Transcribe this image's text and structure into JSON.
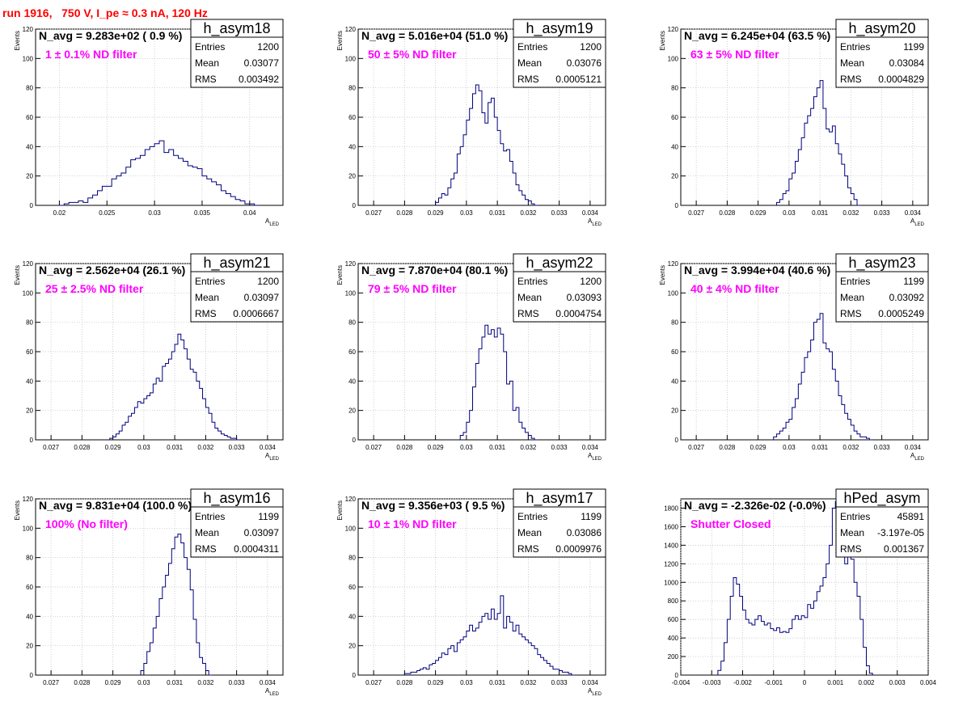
{
  "title": "run 1916,   750 V, I_pe ≈ 0.3 nA, 120 Hz",
  "colors": {
    "title": "#ff0000",
    "histogram": "#00007f",
    "filter_text": "#ff00ff",
    "grid": "#bbbbbb"
  },
  "stats_labels": [
    "Entries",
    "Mean",
    "RMS"
  ],
  "chart_data": [
    {
      "type": "histogram",
      "name": "h_asym18",
      "n_avg": "N_avg = 9.283e+02 ( 0.9 %)",
      "filter": "1 ± 0.1% ND filter",
      "entries": "1200",
      "mean": "0.03077",
      "rms": "0.003492",
      "xlabel": "A_LED",
      "ylabel": "Events",
      "xlim": [
        0.0175,
        0.0435
      ],
      "ylim": [
        0,
        120
      ],
      "xticks": [
        "0.02",
        "0.025",
        "0.03",
        "0.035",
        "0.04"
      ],
      "xtick_values": [
        0.02,
        0.025,
        0.03,
        0.035,
        0.04
      ],
      "yticks": [
        0,
        20,
        40,
        60,
        80,
        100,
        120
      ],
      "bins": [
        0.02,
        0.0205,
        0.021,
        0.0215,
        0.022,
        0.0225,
        0.023,
        0.0235,
        0.024,
        0.0245,
        0.025,
        0.0255,
        0.026,
        0.0265,
        0.027,
        0.0275,
        0.028,
        0.0285,
        0.029,
        0.0295,
        0.03,
        0.0305,
        0.031,
        0.0315,
        0.032,
        0.0325,
        0.033,
        0.0335,
        0.034,
        0.0345,
        0.035,
        0.0355,
        0.036,
        0.0365,
        0.037,
        0.0375,
        0.038,
        0.0385,
        0.039,
        0.0395,
        0.04,
        0.0405
      ],
      "counts": [
        0,
        1,
        2,
        2,
        3,
        2,
        5,
        7,
        10,
        13,
        13,
        18,
        20,
        22,
        26,
        31,
        32,
        34,
        38,
        40,
        42,
        44,
        36,
        38,
        34,
        32,
        30,
        27,
        26,
        25,
        20,
        18,
        16,
        14,
        10,
        8,
        6,
        4,
        3,
        1,
        1,
        0
      ]
    },
    {
      "type": "histogram",
      "name": "h_asym19",
      "n_avg": "N_avg = 5.016e+04 (51.0 %)",
      "filter": "50 ± 5% ND filter",
      "entries": "1200",
      "mean": "0.03076",
      "rms": "0.0005121",
      "xlabel": "A_LED",
      "ylabel": "Events",
      "xlim": [
        0.0265,
        0.0345
      ],
      "ylim": [
        0,
        120
      ],
      "xticks": [
        "0.027",
        "0.028",
        "0.029",
        "0.03",
        "0.031",
        "0.032",
        "0.033",
        "0.034"
      ],
      "xtick_values": [
        0.027,
        0.028,
        0.029,
        0.03,
        0.031,
        0.032,
        0.033,
        0.034
      ],
      "yticks": [
        0,
        20,
        40,
        60,
        80,
        100,
        120
      ],
      "bins": [
        0.029,
        0.0291,
        0.0292,
        0.0293,
        0.0294,
        0.0295,
        0.0296,
        0.0297,
        0.0298,
        0.0299,
        0.03,
        0.0301,
        0.0302,
        0.0303,
        0.0304,
        0.0305,
        0.0306,
        0.0307,
        0.0308,
        0.0309,
        0.031,
        0.0311,
        0.0312,
        0.0313,
        0.0314,
        0.0315,
        0.0316,
        0.0317,
        0.0318,
        0.0319,
        0.032,
        0.0321,
        0.0322
      ],
      "counts": [
        2,
        5,
        8,
        7,
        12,
        18,
        22,
        35,
        40,
        48,
        58,
        66,
        76,
        82,
        78,
        63,
        56,
        70,
        73,
        60,
        51,
        42,
        37,
        38,
        30,
        22,
        14,
        10,
        7,
        4,
        3,
        1,
        0
      ]
    },
    {
      "type": "histogram",
      "name": "h_asym20",
      "n_avg": "N_avg = 6.245e+04 (63.5 %)",
      "filter": "63 ± 5% ND filter",
      "entries": "1199",
      "mean": "0.03084",
      "rms": "0.0004829",
      "xlabel": "A_LED",
      "ylabel": "Events",
      "xlim": [
        0.0265,
        0.0345
      ],
      "ylim": [
        0,
        120
      ],
      "xticks": [
        "0.027",
        "0.028",
        "0.029",
        "0.03",
        "0.031",
        "0.032",
        "0.033",
        "0.034"
      ],
      "xtick_values": [
        0.027,
        0.028,
        0.029,
        0.03,
        0.031,
        0.032,
        0.033,
        0.034
      ],
      "yticks": [
        0,
        20,
        40,
        60,
        80,
        100,
        120
      ],
      "bins": [
        0.0296,
        0.0297,
        0.0298,
        0.0299,
        0.03,
        0.0301,
        0.0302,
        0.0303,
        0.0304,
        0.0305,
        0.0306,
        0.0307,
        0.0308,
        0.0309,
        0.031,
        0.0311,
        0.0312,
        0.0313,
        0.0314,
        0.0315,
        0.0316,
        0.0317,
        0.0318,
        0.0319,
        0.032,
        0.0321,
        0.0322
      ],
      "counts": [
        2,
        4,
        8,
        10,
        18,
        22,
        30,
        38,
        46,
        56,
        61,
        66,
        74,
        80,
        85,
        66,
        52,
        50,
        54,
        42,
        35,
        28,
        20,
        12,
        8,
        4,
        0
      ]
    },
    {
      "type": "histogram",
      "name": "h_asym21",
      "n_avg": "N_avg = 2.562e+04 (26.1 %)",
      "filter": "25 ± 2.5% ND filter",
      "entries": "1200",
      "mean": "0.03097",
      "rms": "0.0006667",
      "xlabel": "A_LED",
      "ylabel": "Events",
      "xlim": [
        0.0265,
        0.0345
      ],
      "ylim": [
        0,
        120
      ],
      "xticks": [
        "0.027",
        "0.028",
        "0.029",
        "0.03",
        "0.031",
        "0.032",
        "0.033",
        "0.034"
      ],
      "xtick_values": [
        0.027,
        0.028,
        0.029,
        0.03,
        0.031,
        0.032,
        0.033,
        0.034
      ],
      "yticks": [
        0,
        20,
        40,
        60,
        80,
        100,
        120
      ],
      "bins": [
        0.0289,
        0.029,
        0.0291,
        0.0292,
        0.0293,
        0.0294,
        0.0295,
        0.0296,
        0.0297,
        0.0298,
        0.0299,
        0.03,
        0.0301,
        0.0302,
        0.0303,
        0.0304,
        0.0305,
        0.0306,
        0.0307,
        0.0308,
        0.0309,
        0.031,
        0.0311,
        0.0312,
        0.0313,
        0.0314,
        0.0315,
        0.0316,
        0.0317,
        0.0318,
        0.0319,
        0.032,
        0.0321,
        0.0322,
        0.0323,
        0.0324,
        0.0325,
        0.0326,
        0.0327,
        0.0328,
        0.0329,
        0.033
      ],
      "counts": [
        1,
        2,
        4,
        6,
        10,
        12,
        16,
        18,
        22,
        26,
        25,
        28,
        30,
        32,
        38,
        42,
        40,
        50,
        52,
        55,
        60,
        65,
        72,
        68,
        62,
        55,
        48,
        46,
        40,
        35,
        28,
        22,
        18,
        12,
        8,
        6,
        4,
        3,
        2,
        1,
        1,
        0
      ]
    },
    {
      "type": "histogram",
      "name": "h_asym22",
      "n_avg": "N_avg = 7.870e+04 (80.1 %)",
      "filter": "79 ± 5% ND filter",
      "entries": "1200",
      "mean": "0.03093",
      "rms": "0.0004754",
      "xlabel": "A_LED",
      "ylabel": "Events",
      "xlim": [
        0.0265,
        0.0345
      ],
      "ylim": [
        0,
        120
      ],
      "xticks": [
        "0.027",
        "0.028",
        "0.029",
        "0.03",
        "0.031",
        "0.032",
        "0.033",
        "0.034"
      ],
      "xtick_values": [
        0.027,
        0.028,
        0.029,
        0.03,
        0.031,
        0.032,
        0.033,
        0.034
      ],
      "yticks": [
        0,
        20,
        40,
        60,
        80,
        100,
        120
      ],
      "bins": [
        0.0298,
        0.0299,
        0.03,
        0.0301,
        0.0302,
        0.0303,
        0.0304,
        0.0305,
        0.0306,
        0.0307,
        0.0308,
        0.0309,
        0.031,
        0.0311,
        0.0312,
        0.0313,
        0.0314,
        0.0315,
        0.0316,
        0.0317,
        0.0318,
        0.0319,
        0.032,
        0.0321,
        0.0322
      ],
      "counts": [
        3,
        5,
        12,
        20,
        36,
        52,
        62,
        70,
        78,
        72,
        75,
        70,
        76,
        72,
        60,
        38,
        40,
        20,
        22,
        12,
        8,
        5,
        3,
        1,
        0
      ]
    },
    {
      "type": "histogram",
      "name": "h_asym23",
      "n_avg": "N_avg = 3.994e+04 (40.6 %)",
      "filter": "40 ± 4% ND filter",
      "entries": "1199",
      "mean": "0.03092",
      "rms": "0.0005249",
      "xlabel": "A_LED",
      "ylabel": "Events",
      "xlim": [
        0.0265,
        0.0345
      ],
      "ylim": [
        0,
        120
      ],
      "xticks": [
        "0.027",
        "0.028",
        "0.029",
        "0.03",
        "0.031",
        "0.032",
        "0.033",
        "0.034"
      ],
      "xtick_values": [
        0.027,
        0.028,
        0.029,
        0.03,
        0.031,
        0.032,
        0.033,
        0.034
      ],
      "yticks": [
        0,
        20,
        40,
        60,
        80,
        100,
        120
      ],
      "bins": [
        0.0295,
        0.0296,
        0.0297,
        0.0298,
        0.0299,
        0.03,
        0.0301,
        0.0302,
        0.0303,
        0.0304,
        0.0305,
        0.0306,
        0.0307,
        0.0308,
        0.0309,
        0.031,
        0.0311,
        0.0312,
        0.0313,
        0.0314,
        0.0315,
        0.0316,
        0.0317,
        0.0318,
        0.0319,
        0.032,
        0.0321,
        0.0322,
        0.0323,
        0.0324,
        0.0325,
        0.0326
      ],
      "counts": [
        2,
        4,
        6,
        8,
        12,
        14,
        22,
        28,
        38,
        46,
        56,
        60,
        68,
        80,
        82,
        86,
        66,
        62,
        60,
        48,
        40,
        30,
        24,
        18,
        14,
        10,
        6,
        4,
        2,
        2,
        1,
        0
      ]
    },
    {
      "type": "histogram",
      "name": "h_asym16",
      "n_avg": "N_avg = 9.831e+04 (100.0 %)",
      "filter": "100% (No filter)",
      "entries": "1199",
      "mean": "0.03097",
      "rms": "0.0004311",
      "xlabel": "A_LED",
      "ylabel": "Events",
      "xlim": [
        0.0265,
        0.0345
      ],
      "ylim": [
        0,
        120
      ],
      "xticks": [
        "0.027",
        "0.028",
        "0.029",
        "0.03",
        "0.031",
        "0.032",
        "0.033",
        "0.034"
      ],
      "xtick_values": [
        0.027,
        0.028,
        0.029,
        0.03,
        0.031,
        0.032,
        0.033,
        0.034
      ],
      "yticks": [
        0,
        20,
        40,
        60,
        80,
        100,
        120
      ],
      "bins": [
        0.0299,
        0.03,
        0.0301,
        0.0302,
        0.0303,
        0.0304,
        0.0305,
        0.0306,
        0.0307,
        0.0308,
        0.0309,
        0.031,
        0.0311,
        0.0312,
        0.0313,
        0.0314,
        0.0315,
        0.0316,
        0.0317,
        0.0318,
        0.0319,
        0.032,
        0.0321
      ],
      "counts": [
        3,
        8,
        16,
        22,
        32,
        40,
        52,
        60,
        68,
        76,
        86,
        94,
        96,
        90,
        80,
        72,
        58,
        38,
        22,
        12,
        8,
        3,
        0
      ]
    },
    {
      "type": "histogram",
      "name": "h_asym17",
      "n_avg": "N_avg = 9.356e+03 ( 9.5 %)",
      "filter": "10 ± 1% ND filter",
      "entries": "1199",
      "mean": "0.03086",
      "rms": "0.0009976",
      "xlabel": "A_LED",
      "ylabel": "Events",
      "xlim": [
        0.0265,
        0.0345
      ],
      "ylim": [
        0,
        120
      ],
      "xticks": [
        "0.027",
        "0.028",
        "0.029",
        "0.03",
        "0.031",
        "0.032",
        "0.033",
        "0.034"
      ],
      "xtick_values": [
        0.027,
        0.028,
        0.029,
        0.03,
        0.031,
        0.032,
        0.033,
        0.034
      ],
      "yticks": [
        0,
        20,
        40,
        60,
        80,
        100,
        120
      ],
      "bins": [
        0.028,
        0.0281,
        0.0282,
        0.0283,
        0.0284,
        0.0285,
        0.0286,
        0.0287,
        0.0288,
        0.0289,
        0.029,
        0.0291,
        0.0292,
        0.0293,
        0.0294,
        0.0295,
        0.0296,
        0.0297,
        0.0298,
        0.0299,
        0.03,
        0.0301,
        0.0302,
        0.0303,
        0.0304,
        0.0305,
        0.0306,
        0.0307,
        0.0308,
        0.0309,
        0.031,
        0.0311,
        0.0312,
        0.0313,
        0.0314,
        0.0315,
        0.0316,
        0.0317,
        0.0318,
        0.0319,
        0.032,
        0.0321,
        0.0322,
        0.0323,
        0.0324,
        0.0325,
        0.0326,
        0.0327,
        0.0328,
        0.0329,
        0.033,
        0.0331,
        0.0332,
        0.0333,
        0.0334
      ],
      "counts": [
        1,
        1,
        2,
        2,
        3,
        4,
        5,
        4,
        7,
        8,
        10,
        12,
        15,
        14,
        18,
        20,
        16,
        22,
        24,
        26,
        30,
        34,
        30,
        32,
        36,
        40,
        42,
        38,
        45,
        38,
        42,
        54,
        32,
        40,
        36,
        30,
        34,
        28,
        26,
        24,
        22,
        20,
        18,
        14,
        12,
        10,
        8,
        6,
        4,
        4,
        3,
        2,
        2,
        1,
        0
      ]
    },
    {
      "type": "histogram",
      "name": "hPed_asym",
      "n_avg": "N_avg = -2.326e-02 (-0.0%)",
      "filter": "Shutter Closed",
      "entries": "45891",
      "mean": "-3.197e-05",
      "rms": "0.001367",
      "xlabel": "",
      "ylabel": "",
      "xlim": [
        -0.004,
        0.004
      ],
      "ylim": [
        0,
        1900
      ],
      "xticks": [
        "-0.004",
        "-0.003",
        "-0.002",
        "-0.001",
        "0",
        "0.001",
        "0.002",
        "0.003",
        "0.004"
      ],
      "xtick_values": [
        -0.004,
        -0.003,
        -0.002,
        -0.001,
        0,
        0.001,
        0.002,
        0.003,
        0.004
      ],
      "yticks": [
        0,
        200,
        400,
        600,
        800,
        1000,
        1200,
        1400,
        1600,
        1800
      ],
      "bins": [
        -0.0028,
        -0.0027,
        -0.0026,
        -0.0025,
        -0.0024,
        -0.0023,
        -0.0022,
        -0.0021,
        -0.002,
        -0.0019,
        -0.0018,
        -0.0017,
        -0.0016,
        -0.0015,
        -0.0014,
        -0.0013,
        -0.0012,
        -0.0011,
        -0.001,
        -0.0009,
        -0.0008,
        -0.0007,
        -0.0006,
        -0.0005,
        -0.0004,
        -0.0003,
        -0.0002,
        -0.0001,
        0,
        0.0001,
        0.0002,
        0.0003,
        0.0004,
        0.0005,
        0.0006,
        0.0007,
        0.0008,
        0.0009,
        0.001,
        0.0011,
        0.0012,
        0.0013,
        0.0014,
        0.0015,
        0.0016,
        0.0017,
        0.0018,
        0.0019,
        0.002,
        0.0021
      ],
      "counts": [
        50,
        150,
        350,
        600,
        850,
        1050,
        980,
        850,
        700,
        600,
        560,
        540,
        600,
        640,
        580,
        540,
        560,
        500,
        480,
        510,
        460,
        470,
        460,
        500,
        600,
        640,
        600,
        640,
        620,
        760,
        720,
        800,
        900,
        960,
        1050,
        1200,
        1400,
        1800,
        1870,
        1500,
        1300,
        1200,
        1300,
        1250,
        1000,
        850,
        600,
        300,
        100,
        20
      ]
    }
  ]
}
